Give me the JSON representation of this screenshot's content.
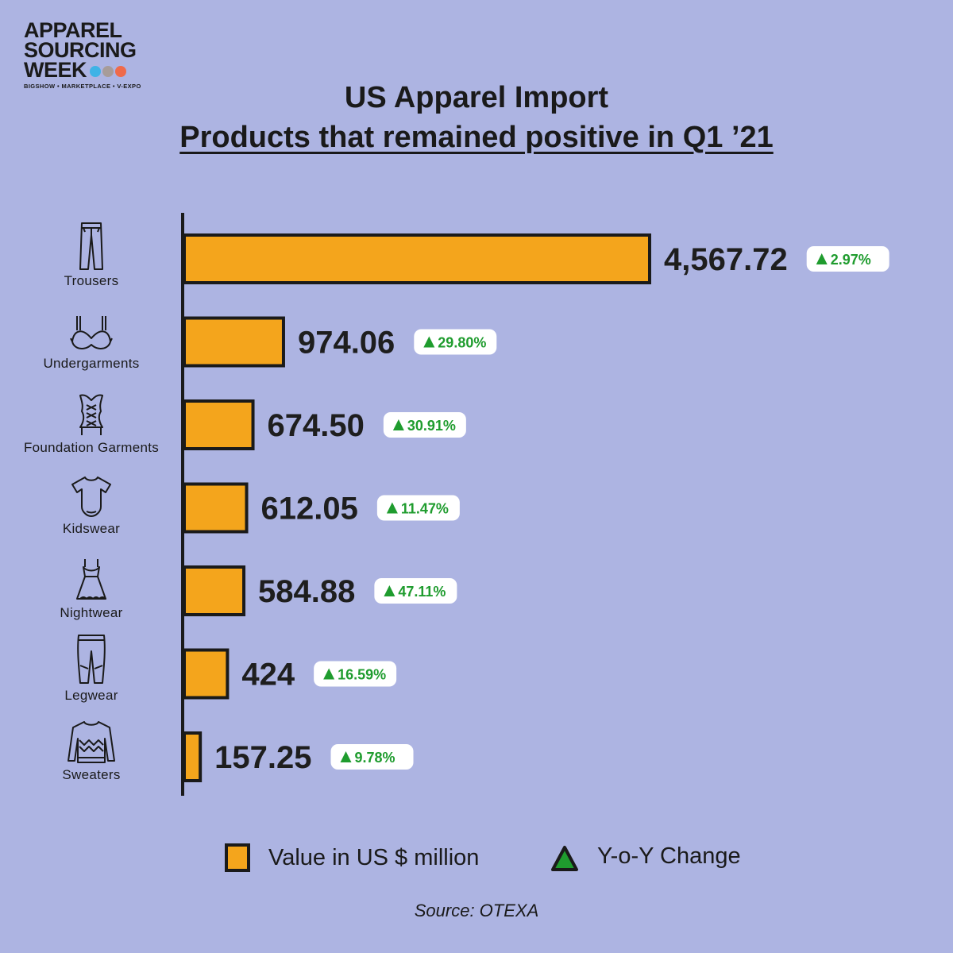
{
  "logo": {
    "line1": "APPAREL",
    "line2": "SOURCING",
    "line3": "WEEK",
    "tagline": "BIGSHOW • MARKETPLACE • V-EXPO",
    "dot_colors": [
      "#3fb3e6",
      "#a79c9a",
      "#ef6a4a"
    ]
  },
  "colors": {
    "bar": "#f4a51c",
    "outline": "#1a1a1a",
    "positive": "#1f9c2e",
    "background": "#adb4e2"
  },
  "legend": {
    "value_label": "Value in US $ million",
    "change_label": "Y-o-Y Change"
  },
  "source": "Source: OTEXA",
  "chart_data": {
    "type": "bar",
    "orientation": "horizontal",
    "title": "US Apparel Import",
    "subtitle": "Products that remained positive in Q1 ’21",
    "categories": [
      "Trousers",
      "Undergarments",
      "Foundation Garments",
      "Kidswear",
      "Nightwear",
      "Legwear",
      "Sweaters"
    ],
    "icons": [
      "trousers-icon",
      "bra-icon",
      "corset-icon",
      "bodysuit-icon",
      "nightgown-icon",
      "leggings-icon",
      "sweater-icon"
    ],
    "series": [
      {
        "name": "Value in US $ million",
        "values": [
          4567.72,
          974.06,
          674.5,
          612.05,
          584.88,
          424,
          157.25
        ]
      },
      {
        "name": "Y-o-Y Change",
        "values": [
          2.97,
          29.8,
          30.91,
          11.47,
          47.11,
          16.59,
          9.78
        ]
      }
    ],
    "value_labels": [
      "4,567.72",
      "974.06",
      "674.50",
      "612.05",
      "584.88",
      "424",
      "157.25"
    ],
    "change_labels": [
      "2.97%",
      "29.80%",
      "30.91%",
      "11.47%",
      "47.11%",
      "16.59%",
      "9.78%"
    ],
    "xlim": [
      0,
      4567.72
    ],
    "grid": false,
    "legend_position": "bottom"
  }
}
